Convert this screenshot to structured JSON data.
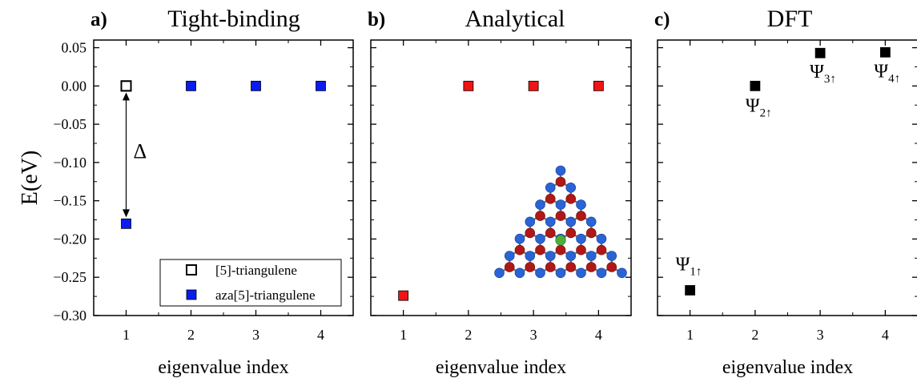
{
  "figure": {
    "ylabel": "E(eV)",
    "y_ticks": [
      "0.05",
      "0.00",
      "−0.05",
      "−0.10",
      "−0.15",
      "−0.20",
      "−0.25",
      "−0.30"
    ],
    "x_ticks": [
      "1",
      "2",
      "3",
      "4"
    ]
  },
  "chart_data": [
    {
      "type": "scatter",
      "panel_tag": "a)",
      "title": "Tight-binding",
      "xlabel": "eigenvalue index",
      "ylabel": "E(eV)",
      "xlim": [
        0.5,
        4.5
      ],
      "ylim": [
        -0.3,
        0.06
      ],
      "series": [
        {
          "name": "[5]-triangulene",
          "marker": "hollow-square",
          "color": "#000000",
          "x": [
            1
          ],
          "y": [
            0.0
          ]
        },
        {
          "name": "aza[5]-triangulene",
          "marker": "filled-square",
          "color": "#0a1cf0",
          "x": [
            1,
            2,
            3,
            4
          ],
          "y": [
            -0.18,
            0.0,
            0.0,
            0.0
          ]
        }
      ],
      "annotations": [
        {
          "text": "Δ",
          "between": [
            0.0,
            -0.18
          ]
        }
      ],
      "legend_position": "bottom-right"
    },
    {
      "type": "scatter",
      "panel_tag": "b)",
      "title": "Analytical",
      "xlabel": "eigenvalue index",
      "xlim": [
        0.5,
        4.5
      ],
      "ylim": [
        -0.3,
        0.06
      ],
      "series": [
        {
          "marker": "filled-square",
          "color": "#f01414",
          "x": [
            1,
            2,
            3,
            4
          ],
          "y": [
            -0.274,
            0.0,
            0.0,
            0.0
          ]
        }
      ],
      "inset": "triangulene-lattice"
    },
    {
      "type": "scatter",
      "panel_tag": "c)",
      "title": "DFT",
      "xlabel": "eigenvalue index",
      "xlim": [
        0.5,
        4.5
      ],
      "ylim": [
        -0.3,
        0.06
      ],
      "series": [
        {
          "marker": "filled-square",
          "color": "#000000",
          "x": [
            1,
            2,
            3,
            4
          ],
          "y": [
            -0.267,
            0.0,
            0.043,
            0.044
          ]
        }
      ],
      "point_labels": [
        {
          "main": "Ψ",
          "sub": "1↑"
        },
        {
          "main": "Ψ",
          "sub": "2↑"
        },
        {
          "main": "Ψ",
          "sub": "3↑"
        },
        {
          "main": "Ψ",
          "sub": "4↑"
        }
      ]
    }
  ]
}
